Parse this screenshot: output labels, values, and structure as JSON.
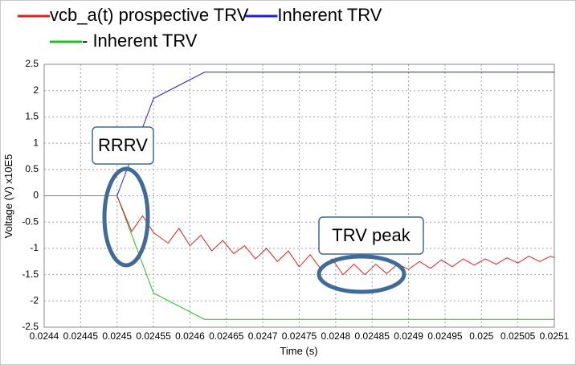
{
  "chart_data": {
    "type": "line",
    "xlabel": "Time (s)",
    "ylabel": "Voltage (V) x10E5",
    "xlim": [
      0.0244,
      0.0251
    ],
    "ylim": [
      -2.5,
      2.5
    ],
    "xticks": [
      0.0244,
      0.02445,
      0.0245,
      0.02455,
      0.0246,
      0.02465,
      0.0247,
      0.02475,
      0.0248,
      0.02485,
      0.0249,
      0.02495,
      0.025,
      0.02505,
      0.0251
    ],
    "yticks": [
      2.5,
      2,
      1.5,
      1,
      0.5,
      0,
      -0.5,
      -1,
      -1.5,
      -2,
      -2.5
    ],
    "grid": true,
    "annotations": [
      "RRRV",
      "TRV peak"
    ],
    "series": [
      {
        "name": "vcb_a(t) prospective TRV",
        "color": "#e02020",
        "x": [
          0.0245,
          0.02452,
          0.024535,
          0.02455,
          0.02457,
          0.024585,
          0.0246,
          0.024615,
          0.02463,
          0.024645,
          0.02466,
          0.024675,
          0.02469,
          0.024705,
          0.02472,
          0.024735,
          0.02475,
          0.024765,
          0.02478,
          0.024795,
          0.02481,
          0.024825,
          0.02484,
          0.024855,
          0.02487,
          0.024885,
          0.0249,
          0.024915,
          0.02493,
          0.024945,
          0.02496,
          0.024975,
          0.02499,
          0.025005,
          0.02502,
          0.025035,
          0.02505,
          0.025065,
          0.02508,
          0.025095,
          0.0251
        ],
        "values": [
          0,
          -0.68,
          -0.38,
          -0.7,
          -0.9,
          -0.62,
          -0.95,
          -0.75,
          -1.05,
          -0.85,
          -1.1,
          -0.95,
          -1.2,
          -1.0,
          -1.25,
          -1.05,
          -1.35,
          -1.12,
          -1.4,
          -1.2,
          -1.5,
          -1.3,
          -1.5,
          -1.3,
          -1.48,
          -1.3,
          -1.4,
          -1.25,
          -1.38,
          -1.22,
          -1.35,
          -1.2,
          -1.32,
          -1.2,
          -1.3,
          -1.18,
          -1.28,
          -1.15,
          -1.25,
          -1.15,
          -1.18
        ]
      },
      {
        "name": "Inherent TRV",
        "color": "#2020d0",
        "x": [
          0.0245,
          0.02455,
          0.02462,
          0.0251
        ],
        "values": [
          0,
          1.85,
          2.35,
          2.35
        ]
      },
      {
        "name": "- Inherent TRV",
        "color": "#20c020",
        "x": [
          0.0244,
          0.0245,
          0.02455,
          0.02462,
          0.0251
        ],
        "values": [
          0,
          0,
          -1.85,
          -2.35,
          -2.35
        ]
      }
    ]
  }
}
